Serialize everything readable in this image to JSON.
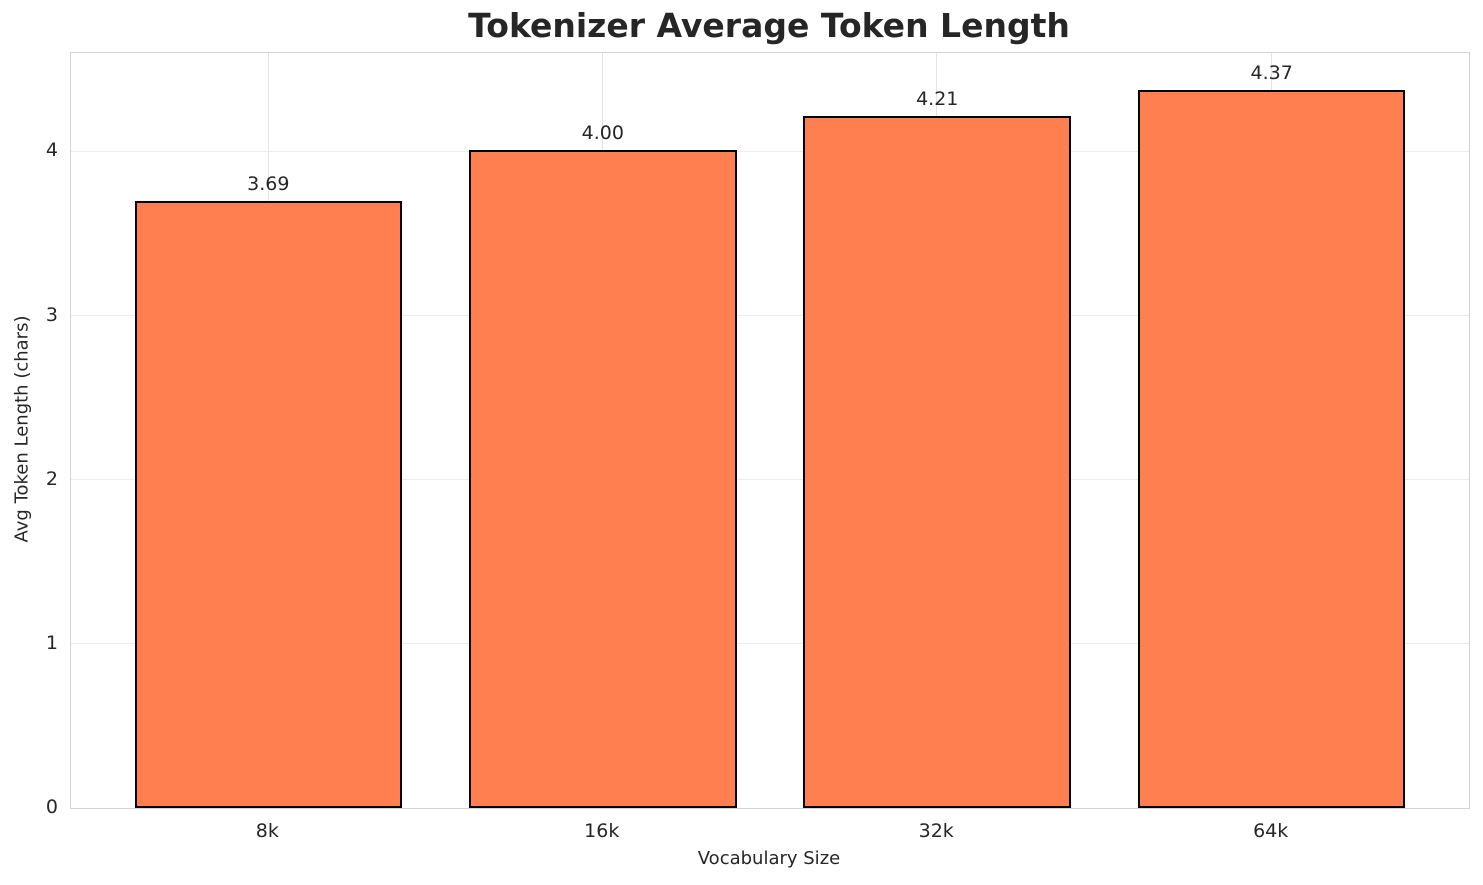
{
  "chart_data": {
    "type": "bar",
    "title": "Tokenizer Average Token Length",
    "xlabel": "Vocabulary Size",
    "ylabel": "Avg Token Length (chars)",
    "categories": [
      "8k",
      "16k",
      "32k",
      "64k"
    ],
    "values": [
      3.69,
      4.0,
      4.21,
      4.37
    ],
    "bar_labels": [
      "3.69",
      "4.00",
      "4.21",
      "4.37"
    ],
    "yticks": [
      "0",
      "1",
      "2",
      "3",
      "4"
    ],
    "ytick_values": [
      0,
      1,
      2,
      3,
      4
    ],
    "ylim": [
      0,
      4.6
    ],
    "xlim": [
      -0.59,
      3.59
    ],
    "bar_width_units": 0.8,
    "bar_color": "#FF7F50",
    "bar_edge_color": "#000000",
    "grid": true,
    "legend": false
  }
}
